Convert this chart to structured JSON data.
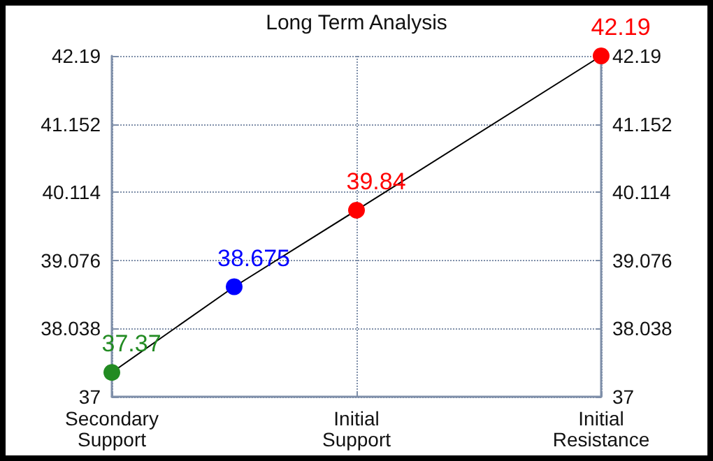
{
  "chart_data": {
    "type": "line",
    "title": "Long Term Analysis",
    "categories": [
      "Secondary\nSupport",
      null,
      "Initial\nSupport",
      null,
      "Initial\nResistance"
    ],
    "series": [
      {
        "color": "#000000",
        "colors": [
          "#228b22",
          "#0000ff",
          "#ff0000",
          null,
          "#ff0000"
        ],
        "values": [
          37.37,
          38.675,
          39.84,
          null,
          42.19
        ]
      }
    ],
    "ylim": [
      37,
      42.19
    ],
    "yticks": [
      37,
      38.038,
      39.076,
      40.114,
      41.152,
      42.19
    ],
    "y2lim": [
      37,
      42.19
    ],
    "y2ticks": [
      37,
      38.038,
      39.076,
      40.114,
      41.152,
      42.19
    ],
    "grid": true,
    "marker": "circle",
    "data_labels": true,
    "line_style": "solid"
  }
}
